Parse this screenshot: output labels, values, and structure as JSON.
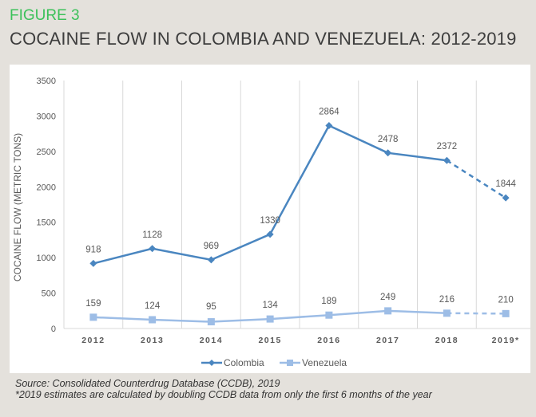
{
  "header": {
    "figure_label": "FIGURE 3",
    "title": "COCAINE FLOW IN COLOMBIA AND VENEZUELA: 2012-2019"
  },
  "chart_data": {
    "type": "line",
    "title": "COCAINE FLOW IN COLOMBIA AND VENEZUELA: 2012-2019",
    "xlabel": "",
    "ylabel": "COCAINE FLOW (METRIC TONS)",
    "ylim": [
      0,
      3500
    ],
    "yticks": [
      0,
      500,
      1000,
      1500,
      2000,
      2500,
      3000,
      3500
    ],
    "categories": [
      "2012",
      "2013",
      "2014",
      "2015",
      "2016",
      "2017",
      "2018",
      "2019*"
    ],
    "grid": "vertical",
    "legend": "bottom",
    "series": [
      {
        "name": "Colombia",
        "color": "#4a86c0",
        "marker": "diamond",
        "values": [
          918,
          1128,
          969,
          1330,
          2864,
          2478,
          2372,
          1844
        ],
        "dashed_last_segment": true
      },
      {
        "name": "Venezuela",
        "color": "#9dbde6",
        "marker": "square",
        "values": [
          159,
          124,
          95,
          134,
          189,
          249,
          216,
          210
        ],
        "dashed_last_segment": true
      }
    ]
  },
  "footer": {
    "source": "Source: Consolidated Counterdrug Database (CCDB), 2019",
    "note": "*2019 estimates are calculated by doubling CCDB data from only the first 6 months of the year"
  }
}
